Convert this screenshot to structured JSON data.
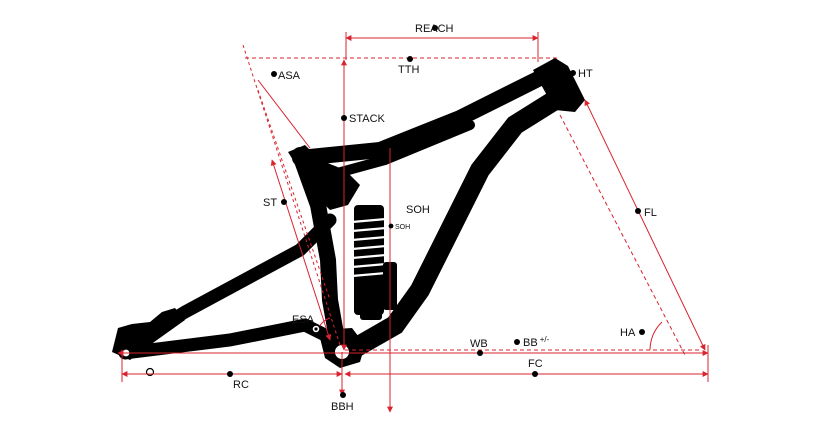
{
  "colors": {
    "frame": "#000000",
    "measure_line": "#d9232e",
    "marker": "#000000",
    "background": "#ffffff"
  },
  "labels": {
    "reach": "REACH",
    "tth": "TTH",
    "asa": "ASA",
    "ht": "HT",
    "stack": "STACK",
    "st": "ST",
    "soh": "SOH",
    "soh_small": "SOH",
    "fl": "FL",
    "esa": "ESA",
    "wb": "WB",
    "bb": "BB",
    "bb_suffix": "+/-",
    "ha": "HA",
    "fc": "FC",
    "rc": "RC",
    "bbh": "BBH"
  }
}
